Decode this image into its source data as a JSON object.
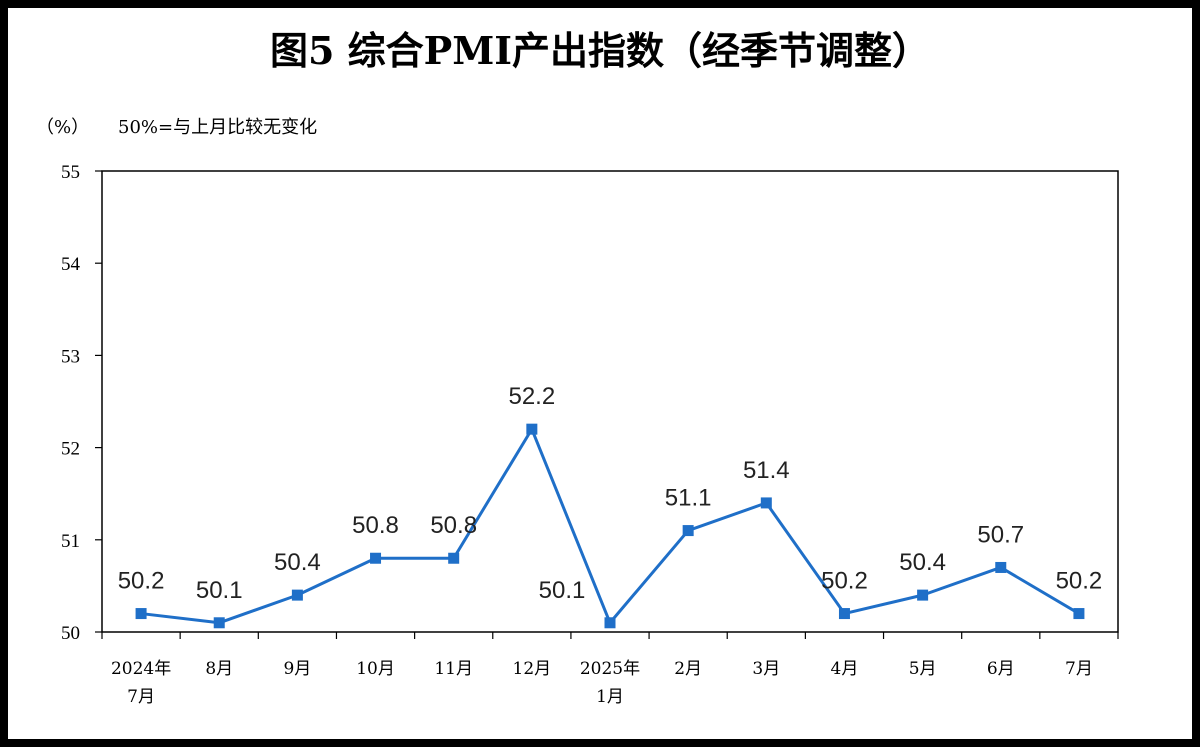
{
  "title": "图5  综合PMI产出指数（经季节调整）",
  "unit_label": "（%）",
  "note": "50%=与上月比较无变化",
  "chart_data": {
    "type": "line",
    "title": "图5  综合PMI产出指数（经季节调整）",
    "ylabel": "（%）",
    "xlabel": "",
    "ylim": [
      50,
      55
    ],
    "yticks": [
      50,
      51,
      52,
      53,
      54,
      55
    ],
    "grid": false,
    "legend": "none",
    "categories": [
      [
        "2024年",
        "7月"
      ],
      [
        "8月"
      ],
      [
        "9月"
      ],
      [
        "10月"
      ],
      [
        "11月"
      ],
      [
        "12月"
      ],
      [
        "2025年",
        "1月"
      ],
      [
        "2月"
      ],
      [
        "3月"
      ],
      [
        "4月"
      ],
      [
        "5月"
      ],
      [
        "6月"
      ],
      [
        "7月"
      ]
    ],
    "values": [
      50.2,
      50.1,
      50.4,
      50.8,
      50.8,
      52.2,
      50.1,
      51.1,
      51.4,
      50.2,
      50.4,
      50.7,
      50.2
    ],
    "data_labels": [
      "50.2",
      "50.1",
      "50.4",
      "50.8",
      "50.8",
      "52.2",
      "50.1",
      "51.1",
      "51.4",
      "50.2",
      "50.4",
      "50.7",
      "50.2"
    ],
    "series_color": "#1f6fc8",
    "marker": "square"
  }
}
